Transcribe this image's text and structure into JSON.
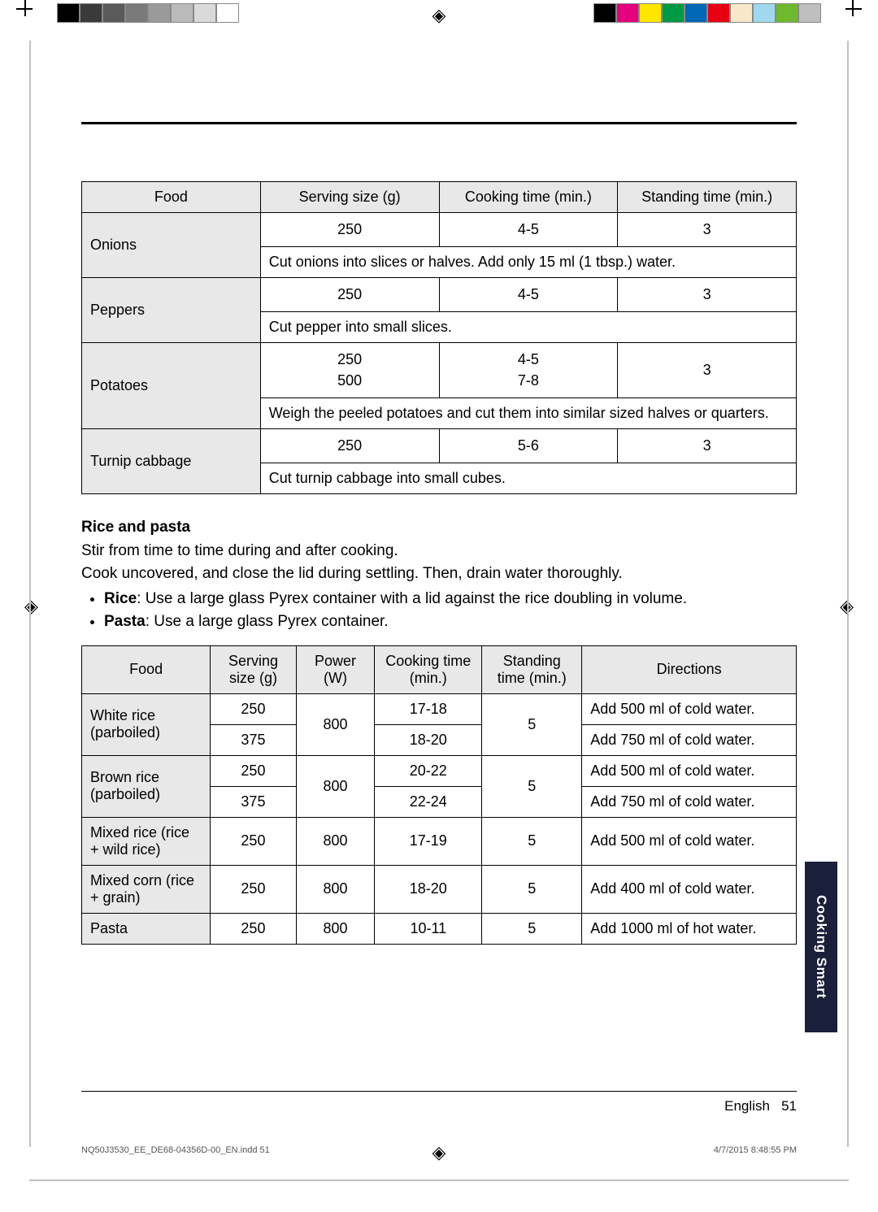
{
  "print": {
    "left_swatches": [
      "#000000",
      "#3a3a3a",
      "#5a5a5a",
      "#7a7a7a",
      "#9a9a9a",
      "#bababa",
      "#dadada",
      "#ffffff"
    ],
    "right_swatches": [
      "#000000",
      "#e4007f",
      "#ffe600",
      "#009944",
      "#0068b7",
      "#e60012",
      "#f8e7c8",
      "#a0d8ef",
      "#6fba2c",
      "#bfbfbf"
    ]
  },
  "table1": {
    "headers": [
      "Food",
      "Serving size (g)",
      "Cooking time (min.)",
      "Standing time (min.)"
    ],
    "rows": [
      {
        "food": "Onions",
        "size": "250",
        "cook": "4-5",
        "stand": "3",
        "note": "Cut onions into slices or halves. Add only 15 ml (1 tbsp.) water."
      },
      {
        "food": "Peppers",
        "size": "250",
        "cook": "4-5",
        "stand": "3",
        "note": "Cut pepper into small slices."
      },
      {
        "food": "Potatoes",
        "size": "250\n500",
        "cook": "4-5\n7-8",
        "stand": "3",
        "note": "Weigh the peeled potatoes and cut them into similar sized halves or quarters."
      },
      {
        "food": "Turnip cabbage",
        "size": "250",
        "cook": "5-6",
        "stand": "3",
        "note": "Cut turnip cabbage into small cubes."
      }
    ]
  },
  "section": {
    "title": "Rice and pasta",
    "line1": "Stir from time to time during and after cooking.",
    "line2": "Cook uncovered, and close the lid during settling. Then, drain water thoroughly.",
    "bullet_rice_label": "Rice",
    "bullet_rice_text": ": Use a large glass Pyrex container with a lid against the rice doubling in volume.",
    "bullet_pasta_label": "Pasta",
    "bullet_pasta_text": ": Use a large glass Pyrex container."
  },
  "table2": {
    "headers": [
      "Food",
      "Serving size (g)",
      "Power (W)",
      "Cooking time (min.)",
      "Standing time (min.)",
      "Directions"
    ],
    "white_rice": {
      "label": "White rice (parboiled)",
      "r1": {
        "size": "250",
        "cook": "17-18",
        "dir": "Add 500 ml of cold water."
      },
      "r2": {
        "size": "375",
        "cook": "18-20",
        "dir": "Add 750 ml of cold water."
      },
      "power": "800",
      "stand": "5"
    },
    "brown_rice": {
      "label": "Brown rice (parboiled)",
      "r1": {
        "size": "250",
        "cook": "20-22",
        "dir": "Add 500 ml of cold water."
      },
      "r2": {
        "size": "375",
        "cook": "22-24",
        "dir": "Add 750 ml of cold water."
      },
      "power": "800",
      "stand": "5"
    },
    "mixed_rice": {
      "label": "Mixed rice (rice + wild rice)",
      "size": "250",
      "power": "800",
      "cook": "17-19",
      "stand": "5",
      "dir": "Add 500 ml of cold water."
    },
    "mixed_corn": {
      "label": "Mixed corn (rice + grain)",
      "size": "250",
      "power": "800",
      "cook": "18-20",
      "stand": "5",
      "dir": "Add 400 ml of cold water."
    },
    "pasta": {
      "label": "Pasta",
      "size": "250",
      "power": "800",
      "cook": "10-11",
      "stand": "5",
      "dir": "Add 1000 ml of hot water."
    }
  },
  "side_tab": "Cooking Smart",
  "footer": {
    "lang": "English",
    "page": "51"
  },
  "imprint": {
    "file": "NQ50J3530_EE_DE68-04356D-00_EN.indd   51",
    "timestamp": "4/7/2015   8:48:55 PM"
  }
}
